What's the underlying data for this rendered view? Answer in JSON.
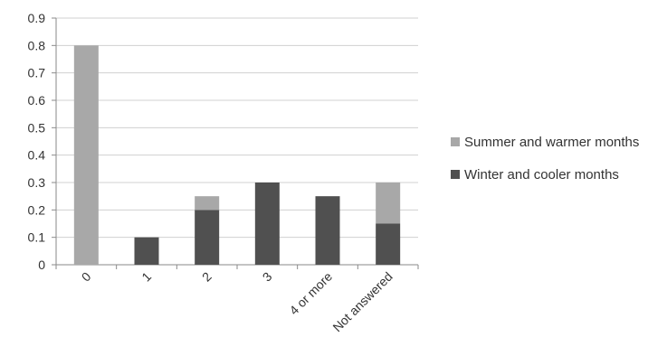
{
  "chart_data": {
    "type": "bar",
    "stacked": true,
    "categories": [
      "0",
      "1",
      "2",
      "3",
      "4 or more",
      "Not answered"
    ],
    "series": [
      {
        "name": "Winter and cooler months",
        "values": [
          0,
          0.1,
          0.2,
          0.3,
          0.25,
          0.15
        ],
        "color": "#505050"
      },
      {
        "name": "Summer and warmer months",
        "values": [
          0.8,
          0,
          0.05,
          0,
          0,
          0.15
        ],
        "color": "#a8a8a8"
      }
    ],
    "ylim": [
      0,
      0.9
    ],
    "yticks": [
      "0",
      "0.1",
      "0.2",
      "0.3",
      "0.4",
      "0.5",
      "0.6",
      "0.7",
      "0.8",
      "0.9"
    ],
    "grid": true,
    "legend_position": "right",
    "legend_order": [
      1,
      0
    ]
  }
}
